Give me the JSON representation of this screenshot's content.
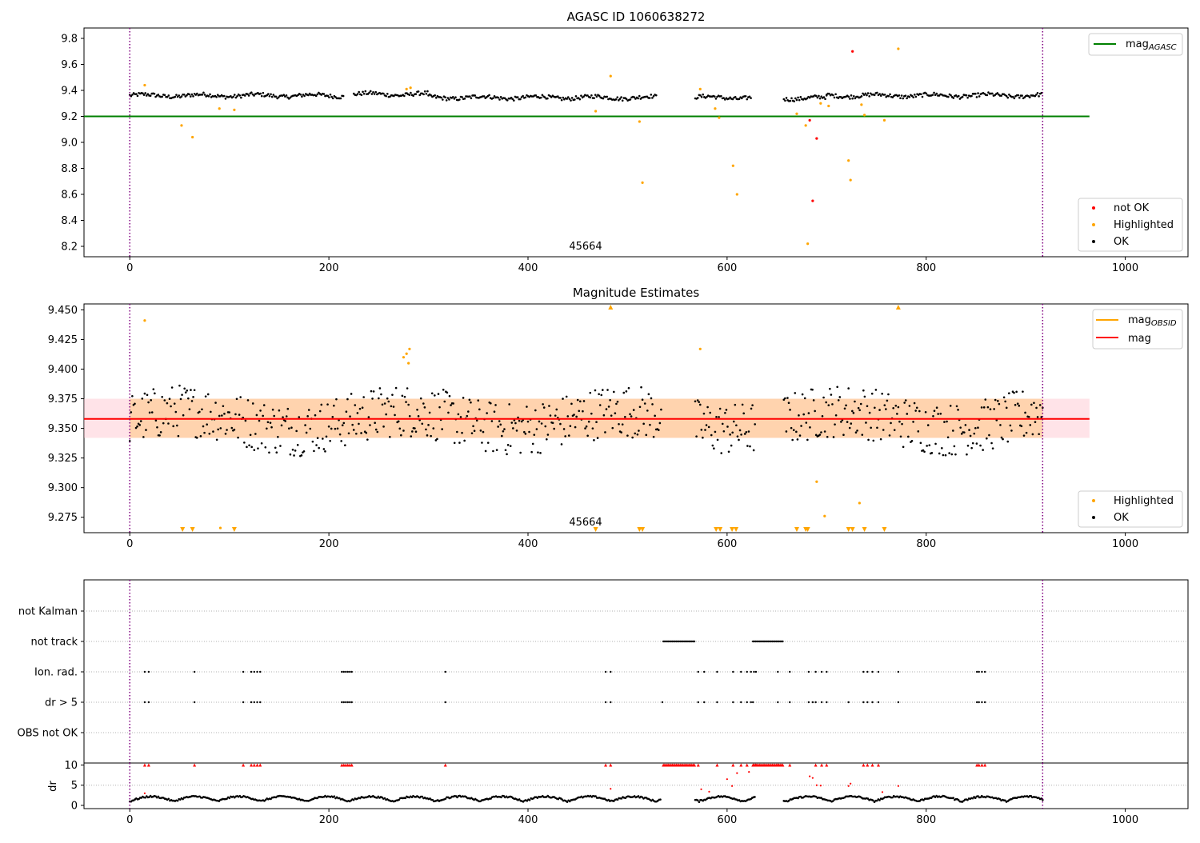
{
  "chart_data": [
    {
      "type": "scatter",
      "title": "AGASC ID 1060638272",
      "annotation": "45664",
      "xlim": [
        -46,
        1063
      ],
      "ylim": [
        8.12,
        9.88
      ],
      "x_ticks": [
        0,
        200,
        400,
        600,
        800,
        1000
      ],
      "y_ticks": [
        8.2,
        8.4,
        8.6,
        8.8,
        9.0,
        9.2,
        9.4,
        9.6,
        9.8
      ],
      "vlines": [
        0,
        917
      ],
      "hlines": [
        {
          "name": "mag_AGASC",
          "value": 9.2,
          "x_range": [
            -46,
            964
          ],
          "color": "#008000"
        }
      ],
      "legend_top": {
        "position": "top-right",
        "entries": [
          {
            "label": "mag",
            "subscript": "AGASC",
            "color": "#008000"
          }
        ]
      },
      "legend_bottom": {
        "position": "bottom-right",
        "entries": [
          {
            "label": "not OK",
            "color": "#ff0000"
          },
          {
            "label": "Highlighted",
            "color": "#ffa500"
          },
          {
            "label": "OK",
            "color": "#000000"
          }
        ]
      },
      "ok_segments": [
        {
          "x": [
            0,
            215
          ],
          "base": 9.36
        },
        {
          "x": [
            225,
            300
          ],
          "base": 9.37
        },
        {
          "x": [
            300,
            530
          ],
          "base": 9.345
        },
        {
          "x": [
            568,
            625
          ],
          "base": 9.345
        },
        {
          "x": [
            657,
            700
          ],
          "base": 9.34
        },
        {
          "x": [
            700,
            917
          ],
          "base": 9.36
        }
      ],
      "highlighted": [
        [
          15,
          9.44
        ],
        [
          52,
          9.13
        ],
        [
          63,
          9.04
        ],
        [
          90,
          9.26
        ],
        [
          105,
          9.25
        ],
        [
          278,
          9.41
        ],
        [
          282,
          9.42
        ],
        [
          468,
          9.24
        ],
        [
          483,
          9.51
        ],
        [
          512,
          9.16
        ],
        [
          515,
          8.69
        ],
        [
          573,
          9.41
        ],
        [
          588,
          9.26
        ],
        [
          592,
          9.19
        ],
        [
          606,
          8.82
        ],
        [
          610,
          8.6
        ],
        [
          670,
          9.22
        ],
        [
          679,
          9.13
        ],
        [
          681,
          8.22
        ],
        [
          694,
          9.3
        ],
        [
          702,
          9.28
        ],
        [
          722,
          8.86
        ],
        [
          724,
          8.71
        ],
        [
          735,
          9.29
        ],
        [
          738,
          9.21
        ],
        [
          758,
          9.17
        ],
        [
          772,
          9.72
        ]
      ],
      "not_ok": [
        [
          683,
          9.17
        ],
        [
          686,
          8.55
        ],
        [
          690,
          9.03
        ],
        [
          726,
          9.7
        ]
      ]
    },
    {
      "type": "scatter",
      "title": "Magnitude Estimates",
      "annotation": "45664",
      "xlim": [
        -46,
        1063
      ],
      "ylim": [
        9.262,
        9.455
      ],
      "x_ticks": [
        0,
        200,
        400,
        600,
        800,
        1000
      ],
      "y_ticks": [
        9.275,
        9.3,
        9.325,
        9.35,
        9.375,
        9.4,
        9.425,
        9.45
      ],
      "vlines": [
        0,
        917
      ],
      "mag": 9.358,
      "mag_band": [
        9.342,
        9.375
      ],
      "band_x_range": [
        -46,
        964
      ],
      "legend_top": {
        "position": "top-right",
        "entries": [
          {
            "label": "mag",
            "subscript": "OBSID",
            "color": "#ffa500"
          },
          {
            "label": "mag",
            "subscript": "",
            "color": "#ff0000"
          }
        ]
      },
      "legend_bottom": {
        "position": "bottom-right",
        "entries": [
          {
            "label": "Highlighted",
            "color": "#ffa500"
          },
          {
            "label": "OK",
            "color": "#000000"
          }
        ]
      },
      "highlighted": [
        [
          15,
          9.441
        ],
        [
          275,
          9.41
        ],
        [
          278,
          9.413
        ],
        [
          281,
          9.417
        ],
        [
          280,
          9.405
        ],
        [
          573,
          9.417
        ],
        [
          690,
          9.305
        ],
        [
          698,
          9.276
        ],
        [
          733,
          9.287
        ],
        [
          91,
          9.266
        ]
      ],
      "highlighted_off_top": [
        483,
        772
      ],
      "highlighted_off_bottom": [
        53,
        63,
        105,
        468,
        512,
        515,
        589,
        593,
        605,
        609,
        670,
        679,
        681,
        722,
        726,
        738,
        758
      ]
    },
    {
      "type": "scatter",
      "title": "",
      "xlim": [
        -46,
        1063
      ],
      "categories": [
        "not Kalman",
        "not track",
        "Ion. rad.",
        "dr > 5",
        "OBS not OK"
      ],
      "vlines": [
        0,
        917
      ],
      "not_track": [
        [
          536,
          568
        ],
        [
          626,
          657
        ]
      ],
      "ion_rad_x": [
        15,
        19,
        65,
        114,
        122,
        125,
        128,
        131,
        213,
        215,
        217,
        219,
        221,
        223,
        317,
        478,
        483,
        571,
        577,
        590,
        606,
        614,
        620,
        624,
        627,
        629,
        651,
        663,
        682,
        689,
        695,
        700,
        737,
        741,
        746,
        752,
        772,
        851,
        853,
        856,
        859
      ],
      "dr5_x": [
        15,
        19,
        65,
        114,
        122,
        125,
        128,
        131,
        213,
        215,
        217,
        219,
        221,
        223,
        317,
        478,
        483,
        535,
        571,
        577,
        590,
        606,
        614,
        620,
        624,
        626,
        651,
        663,
        682,
        686,
        689,
        695,
        700,
        722,
        737,
        741,
        746,
        752,
        772,
        851,
        853,
        856,
        859
      ]
    },
    {
      "type": "scatter",
      "title": "",
      "ylabel": "dr",
      "xlim": [
        -46,
        1063
      ],
      "ylim": [
        -0.8,
        10.5
      ],
      "x_ticks": [
        0,
        200,
        400,
        600,
        800,
        1000
      ],
      "y_ticks": [
        0,
        5,
        10
      ],
      "vlines": [
        0,
        917
      ],
      "capped_x": [
        15,
        19,
        65,
        114,
        122,
        125,
        128,
        131,
        213,
        215,
        217,
        219,
        221,
        223,
        317,
        478,
        483,
        571,
        590,
        606,
        614,
        620,
        627,
        629,
        651,
        663,
        689,
        695,
        700,
        737,
        741,
        746,
        752,
        851,
        853,
        856,
        859
      ],
      "capped_range": [
        536,
        568,
        626,
        657
      ],
      "red_points": [
        [
          15,
          3
        ],
        [
          483,
          4.1
        ],
        [
          574,
          4
        ],
        [
          582,
          3.4
        ],
        [
          600,
          6.5
        ],
        [
          605,
          4.8
        ],
        [
          610,
          8
        ],
        [
          622,
          8.3
        ],
        [
          683,
          7.2
        ],
        [
          686,
          6.8
        ],
        [
          690,
          5
        ],
        [
          694,
          4.9
        ],
        [
          722,
          4.8
        ],
        [
          724,
          5.4
        ],
        [
          756,
          3.3
        ],
        [
          772,
          4.8
        ]
      ]
    }
  ]
}
